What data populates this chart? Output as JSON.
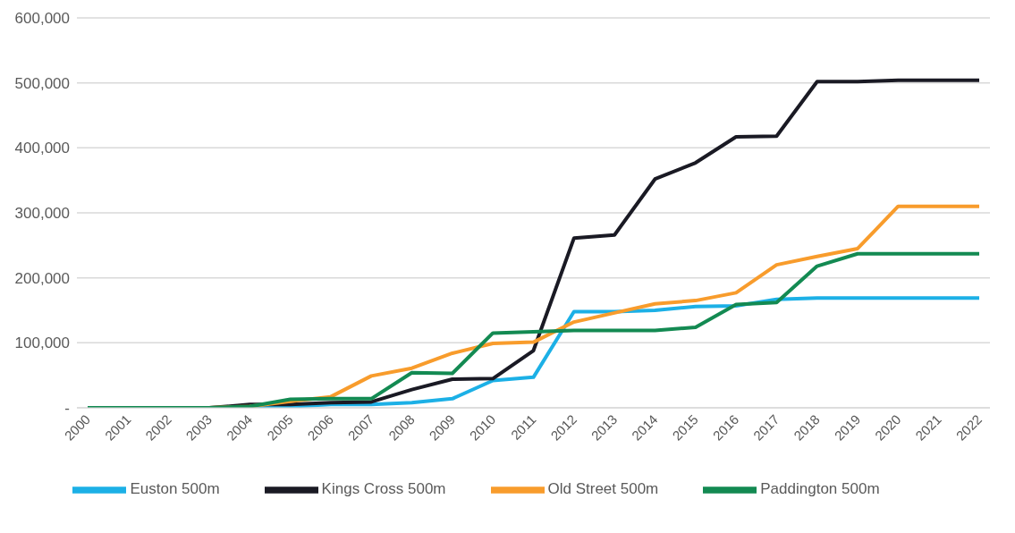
{
  "chart_data": {
    "type": "line",
    "categories": [
      "2000",
      "2001",
      "2002",
      "2003",
      "2004",
      "2005",
      "2006",
      "2007",
      "2008",
      "2009",
      "2010",
      "2011",
      "2012",
      "2013",
      "2014",
      "2015",
      "2016",
      "2017",
      "2018",
      "2019",
      "2020",
      "2021",
      "2022"
    ],
    "series": [
      {
        "name": "Euston 500m",
        "color": "#1cb0e6",
        "values": [
          null,
          null,
          null,
          0,
          0,
          2000,
          5000,
          5000,
          8000,
          14000,
          42000,
          47000,
          148000,
          148000,
          150000,
          156000,
          157000,
          167000,
          169000,
          169000,
          169000,
          169000,
          169000
        ]
      },
      {
        "name": "Kings Cross 500m",
        "color": "#1a1a24",
        "values": [
          null,
          null,
          0,
          0,
          5000,
          5000,
          8000,
          9000,
          28000,
          44000,
          45000,
          88000,
          261000,
          266000,
          352000,
          377000,
          417000,
          418000,
          502000,
          502000,
          504000,
          504000,
          504000
        ]
      },
      {
        "name": "Old Street 500m",
        "color": "#f89c2c",
        "values": [
          null,
          null,
          null,
          0,
          2000,
          10000,
          17000,
          49000,
          61000,
          84000,
          99000,
          101000,
          132000,
          146000,
          160000,
          165000,
          177000,
          220000,
          233000,
          245000,
          310000,
          310000,
          310000
        ]
      },
      {
        "name": "Paddington 500m",
        "color": "#138a52",
        "values": [
          0,
          0,
          0,
          0,
          2000,
          13000,
          14000,
          14000,
          54000,
          53000,
          115000,
          117000,
          119000,
          119000,
          119000,
          124000,
          159000,
          162000,
          218000,
          237000,
          237000,
          237000,
          237000
        ]
      }
    ],
    "ylim": [
      0,
      600000
    ],
    "yticks": [
      {
        "value": 0,
        "label": "-"
      },
      {
        "value": 100000,
        "label": "100,000"
      },
      {
        "value": 200000,
        "label": "200,000"
      },
      {
        "value": 300000,
        "label": "300,000"
      },
      {
        "value": 400000,
        "label": "400,000"
      },
      {
        "value": 500000,
        "label": "500,000"
      },
      {
        "value": 600000,
        "label": "600,000"
      }
    ],
    "grid": "y",
    "legend": "bottom",
    "marker": "none",
    "line_style": "solid"
  }
}
